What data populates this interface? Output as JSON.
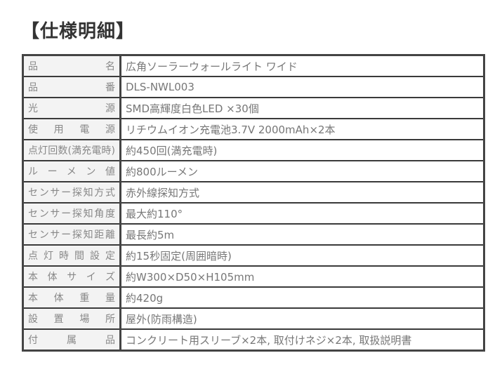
{
  "title": "【仕様明細】",
  "specs": [
    {
      "label": "品名",
      "value": "広角ソーラーウォールライト ワイド"
    },
    {
      "label": "品番",
      "value": "DLS-NWL003"
    },
    {
      "label": "光源",
      "value": "SMD高輝度白色LED ×30個"
    },
    {
      "label": "使用電源",
      "value": "リチウムイオン充電池3.7V  2000mAh×2本"
    },
    {
      "label": "点灯回数(満充電時)",
      "value": "約450回(満充電時)"
    },
    {
      "label": "ルーメン値",
      "value": "約800ルーメン"
    },
    {
      "label": "センサー探知方式",
      "value": "赤外線探知方式"
    },
    {
      "label": "センサー探知角度",
      "value": "最大約110°"
    },
    {
      "label": "センサー探知距離",
      "value": "最長約5m"
    },
    {
      "label": "点灯時間設定",
      "value": "約15秒固定(周囲暗時)"
    },
    {
      "label": "本体サイズ",
      "value": "約W300×D50×H105mm"
    },
    {
      "label": "本体重量",
      "value": "約420g"
    },
    {
      "label": "設置場所",
      "value": "屋外(防雨構造)"
    },
    {
      "label": "付属品",
      "value": "コンクリート用スリーブ×2本, 取付けネジ×2本, 取扱説明書"
    }
  ]
}
